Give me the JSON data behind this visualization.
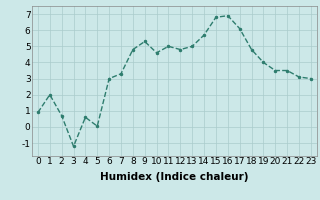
{
  "x": [
    0,
    1,
    2,
    3,
    4,
    5,
    6,
    7,
    8,
    9,
    10,
    11,
    12,
    13,
    14,
    15,
    16,
    17,
    18,
    19,
    20,
    21,
    22,
    23
  ],
  "y": [
    0.9,
    2.0,
    0.7,
    -1.2,
    0.6,
    0.05,
    3.0,
    3.3,
    4.8,
    5.3,
    4.6,
    5.0,
    4.8,
    5.0,
    5.7,
    6.8,
    6.9,
    6.1,
    4.8,
    4.0,
    3.5,
    3.5,
    3.1,
    3.0
  ],
  "line_color": "#2e7d6e",
  "marker": ".",
  "marker_size": 3,
  "bg_color": "#cce8e8",
  "grid_color": "#aacccc",
  "xlabel": "Humidex (Indice chaleur)",
  "ylim": [
    -1.8,
    7.5
  ],
  "xlim": [
    -0.5,
    23.5
  ],
  "yticks": [
    -1,
    0,
    1,
    2,
    3,
    4,
    5,
    6,
    7
  ],
  "xticks": [
    0,
    1,
    2,
    3,
    4,
    5,
    6,
    7,
    8,
    9,
    10,
    11,
    12,
    13,
    14,
    15,
    16,
    17,
    18,
    19,
    20,
    21,
    22,
    23
  ],
  "xlabel_fontsize": 7.5,
  "tick_fontsize": 6.5,
  "line_width": 1.0
}
